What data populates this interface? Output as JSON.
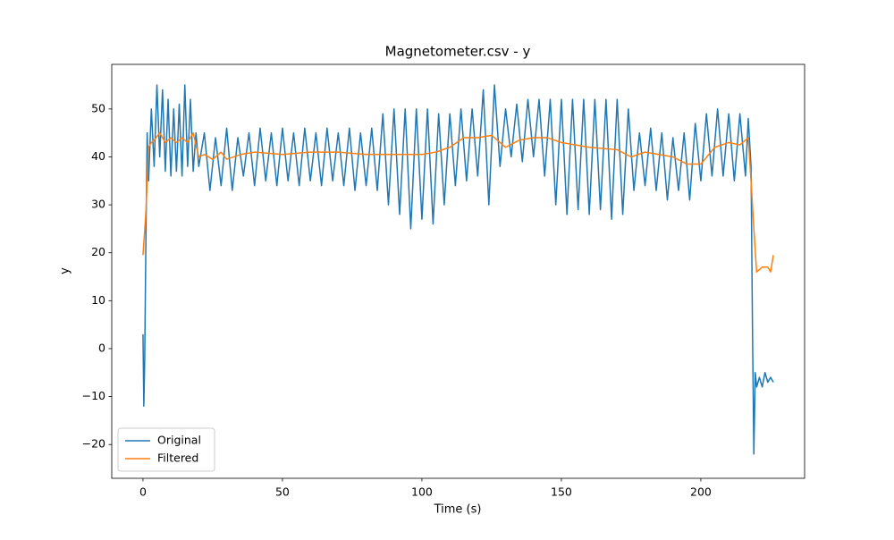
{
  "chart_data": {
    "type": "line",
    "title": "Magnetometer.csv - y",
    "xlabel": "Time (s)",
    "ylabel": "y",
    "xlim": [
      -11.2,
      237.2
    ],
    "ylim": [
      -27.05,
      59.3
    ],
    "xticks": [
      0,
      50,
      100,
      150,
      200
    ],
    "yticks": [
      {
        "value": -20,
        "label": "−20"
      },
      {
        "value": -10,
        "label": "−10"
      },
      0,
      10,
      20,
      30,
      40,
      50
    ],
    "legend": "lower left",
    "series": [
      {
        "name": "Original",
        "color": "#1f77b4",
        "x": [
          0,
          0.3,
          0.6,
          1,
          1.5,
          2,
          3,
          4,
          5,
          6,
          7,
          8,
          9,
          10,
          11,
          12,
          13,
          14,
          15,
          16,
          17,
          18,
          19,
          20,
          22,
          24,
          26,
          28,
          30,
          32,
          34,
          36,
          38,
          40,
          42,
          44,
          46,
          48,
          50,
          52,
          54,
          56,
          58,
          60,
          62,
          64,
          66,
          68,
          70,
          72,
          74,
          76,
          78,
          80,
          82,
          84,
          86,
          88,
          90,
          92,
          94,
          96,
          98,
          100,
          102,
          104,
          106,
          108,
          110,
          112,
          114,
          116,
          118,
          120,
          122,
          124,
          126,
          128,
          130,
          132,
          134,
          136,
          138,
          140,
          142,
          144,
          146,
          148,
          150,
          152,
          154,
          156,
          158,
          160,
          162,
          164,
          166,
          168,
          170,
          172,
          174,
          176,
          178,
          180,
          182,
          184,
          186,
          188,
          190,
          192,
          194,
          196,
          198,
          200,
          202,
          204,
          206,
          208,
          210,
          212,
          214,
          216,
          217,
          218,
          218.5,
          219,
          219.5,
          220,
          221,
          222,
          223,
          224,
          225,
          226
        ],
        "values": [
          3,
          -12,
          -3,
          20,
          45,
          35,
          50,
          38,
          55,
          40,
          54,
          37,
          52,
          36,
          50,
          37,
          51,
          36,
          55,
          38,
          52,
          37,
          45,
          38,
          45,
          33,
          44,
          34,
          46,
          33,
          44,
          36,
          45,
          34,
          46,
          35,
          45,
          34,
          46,
          35,
          45,
          34,
          46,
          35,
          45,
          34,
          46,
          35,
          45,
          34,
          46,
          33,
          45,
          34,
          46,
          33,
          49,
          30,
          50,
          28,
          50,
          25,
          50,
          27,
          50,
          26,
          49,
          30,
          49,
          34,
          50,
          35,
          50,
          36,
          54,
          30,
          55,
          38,
          50,
          40,
          51,
          39,
          52,
          40,
          52,
          36,
          52,
          30,
          52,
          28,
          52,
          29,
          52,
          28,
          52,
          29,
          52,
          27,
          52,
          28,
          50,
          33,
          45,
          34,
          46,
          33,
          45,
          31,
          44,
          33,
          45,
          31,
          47,
          35,
          49,
          36,
          50,
          36,
          49,
          35,
          49,
          36,
          48,
          38,
          5,
          -22,
          -5,
          -8,
          -6,
          -8,
          -5,
          -7,
          -6,
          -7
        ]
      },
      {
        "name": "Filtered",
        "color": "#ff7f0e",
        "x": [
          0,
          1,
          2,
          3,
          4,
          6,
          8,
          10,
          12,
          14,
          16,
          18,
          20,
          22,
          25,
          28,
          30,
          35,
          40,
          50,
          60,
          70,
          80,
          90,
          100,
          105,
          110,
          115,
          120,
          125,
          130,
          135,
          140,
          145,
          150,
          160,
          170,
          175,
          180,
          185,
          190,
          195,
          200,
          205,
          210,
          214,
          217,
          218,
          219,
          220,
          222,
          224,
          225,
          226
        ],
        "values": [
          19.5,
          28,
          42,
          43,
          43.5,
          45,
          43,
          44,
          43,
          44,
          43,
          45,
          40,
          40.5,
          39.5,
          41,
          39.5,
          40.5,
          41,
          40.5,
          41,
          41,
          40.5,
          40.5,
          40.5,
          41,
          42,
          44,
          44,
          44.5,
          42,
          43.5,
          44,
          44,
          43,
          42,
          41.5,
          40,
          41,
          40.5,
          40,
          38.5,
          38.5,
          42,
          43,
          42.5,
          44,
          35,
          25,
          16,
          17,
          17,
          16,
          19.5
        ]
      }
    ]
  }
}
